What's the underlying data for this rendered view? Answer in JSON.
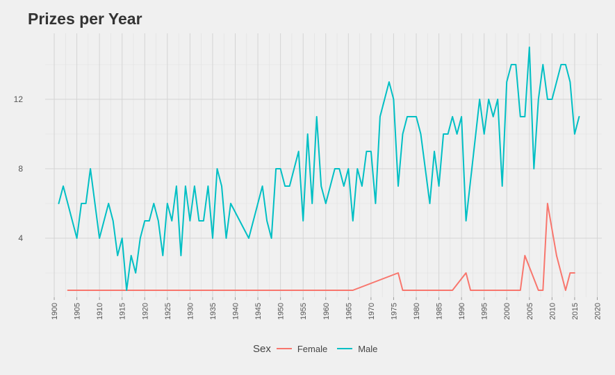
{
  "chart_data": {
    "type": "line",
    "title": "Prizes per Year",
    "xlabel": "",
    "ylabel": "",
    "xlim": [
      1898,
      2021
    ],
    "ylim": [
      0.6,
      15.8
    ],
    "x_ticks": [
      1900,
      1905,
      1910,
      1915,
      1920,
      1925,
      1930,
      1935,
      1940,
      1945,
      1950,
      1955,
      1960,
      1965,
      1970,
      1975,
      1980,
      1985,
      1990,
      1995,
      2000,
      2005,
      2010,
      2015,
      2020
    ],
    "x_tick_labels": [
      "1900",
      "1905",
      "1910",
      "1915",
      "1920",
      "1925",
      "1930",
      "1935",
      "1940",
      "1945",
      "1950",
      "1955",
      "1960",
      "1965",
      "1970",
      "1975",
      "1980",
      "1985",
      "1990",
      "1995",
      "2000",
      "2005",
      "2010",
      "2015",
      "2020"
    ],
    "y_ticks": [
      4,
      8,
      12
    ],
    "y_tick_labels": [
      "4",
      "8",
      "12"
    ],
    "grid": true,
    "legend": {
      "title": "Sex",
      "position": "bottom"
    },
    "series": [
      {
        "name": "Female",
        "color": "#f8766d",
        "points": [
          [
            1903,
            1
          ],
          [
            1905,
            1
          ],
          [
            1909,
            1
          ],
          [
            1911,
            1
          ],
          [
            1926,
            1
          ],
          [
            1938,
            1
          ],
          [
            1945,
            1
          ],
          [
            1946,
            1
          ],
          [
            1947,
            1
          ],
          [
            1963,
            1
          ],
          [
            1964,
            1
          ],
          [
            1966,
            1
          ],
          [
            1976,
            2
          ],
          [
            1977,
            1
          ],
          [
            1979,
            1
          ],
          [
            1982,
            1
          ],
          [
            1983,
            1
          ],
          [
            1986,
            1
          ],
          [
            1988,
            1
          ],
          [
            1991,
            2
          ],
          [
            1992,
            1
          ],
          [
            1993,
            1
          ],
          [
            1995,
            1
          ],
          [
            1996,
            1
          ],
          [
            1997,
            1
          ],
          [
            1998,
            1
          ],
          [
            2000,
            1
          ],
          [
            2003,
            1
          ],
          [
            2004,
            3
          ],
          [
            2007,
            1
          ],
          [
            2008,
            1
          ],
          [
            2009,
            6
          ],
          [
            2011,
            3
          ],
          [
            2013,
            1
          ],
          [
            2014,
            2
          ],
          [
            2015,
            2
          ]
        ]
      },
      {
        "name": "Male",
        "color": "#00bfc4",
        "points": [
          [
            1901,
            6
          ],
          [
            1902,
            7
          ],
          [
            1905,
            4
          ],
          [
            1906,
            6
          ],
          [
            1907,
            6
          ],
          [
            1908,
            8
          ],
          [
            1910,
            4
          ],
          [
            1912,
            6
          ],
          [
            1913,
            5
          ],
          [
            1914,
            3
          ],
          [
            1915,
            4
          ],
          [
            1916,
            1
          ],
          [
            1917,
            3
          ],
          [
            1918,
            2
          ],
          [
            1919,
            4
          ],
          [
            1920,
            5
          ],
          [
            1921,
            5
          ],
          [
            1922,
            6
          ],
          [
            1923,
            5
          ],
          [
            1924,
            3
          ],
          [
            1925,
            6
          ],
          [
            1926,
            5
          ],
          [
            1927,
            7
          ],
          [
            1928,
            3
          ],
          [
            1929,
            7
          ],
          [
            1930,
            5
          ],
          [
            1931,
            7
          ],
          [
            1932,
            5
          ],
          [
            1933,
            5
          ],
          [
            1934,
            7
          ],
          [
            1935,
            4
          ],
          [
            1936,
            8
          ],
          [
            1937,
            7
          ],
          [
            1938,
            4
          ],
          [
            1939,
            6
          ],
          [
            1943,
            4
          ],
          [
            1946,
            7
          ],
          [
            1947,
            5
          ],
          [
            1948,
            4
          ],
          [
            1949,
            8
          ],
          [
            1950,
            8
          ],
          [
            1951,
            7
          ],
          [
            1952,
            7
          ],
          [
            1954,
            9
          ],
          [
            1955,
            5
          ],
          [
            1956,
            10
          ],
          [
            1957,
            6
          ],
          [
            1958,
            11
          ],
          [
            1959,
            7
          ],
          [
            1960,
            6
          ],
          [
            1962,
            8
          ],
          [
            1963,
            8
          ],
          [
            1964,
            7
          ],
          [
            1965,
            8
          ],
          [
            1966,
            5
          ],
          [
            1967,
            8
          ],
          [
            1968,
            7
          ],
          [
            1969,
            9
          ],
          [
            1970,
            9
          ],
          [
            1971,
            6
          ],
          [
            1972,
            11
          ],
          [
            1973,
            12
          ],
          [
            1974,
            13
          ],
          [
            1975,
            12
          ],
          [
            1976,
            7
          ],
          [
            1977,
            10
          ],
          [
            1978,
            11
          ],
          [
            1979,
            11
          ],
          [
            1980,
            11
          ],
          [
            1981,
            10
          ],
          [
            1983,
            6
          ],
          [
            1984,
            9
          ],
          [
            1985,
            7
          ],
          [
            1986,
            10
          ],
          [
            1987,
            10
          ],
          [
            1988,
            11
          ],
          [
            1989,
            10
          ],
          [
            1990,
            11
          ],
          [
            1991,
            5
          ],
          [
            1994,
            12
          ],
          [
            1995,
            10
          ],
          [
            1996,
            12
          ],
          [
            1997,
            11
          ],
          [
            1998,
            12
          ],
          [
            1999,
            7
          ],
          [
            2000,
            13
          ],
          [
            2001,
            14
          ],
          [
            2002,
            14
          ],
          [
            2003,
            11
          ],
          [
            2004,
            11
          ],
          [
            2005,
            15
          ],
          [
            2006,
            8
          ],
          [
            2007,
            12
          ],
          [
            2008,
            14
          ],
          [
            2009,
            12
          ],
          [
            2010,
            12
          ],
          [
            2011,
            13
          ],
          [
            2012,
            14
          ],
          [
            2013,
            14
          ],
          [
            2014,
            13
          ],
          [
            2015,
            10
          ],
          [
            2016,
            11
          ]
        ]
      }
    ]
  }
}
